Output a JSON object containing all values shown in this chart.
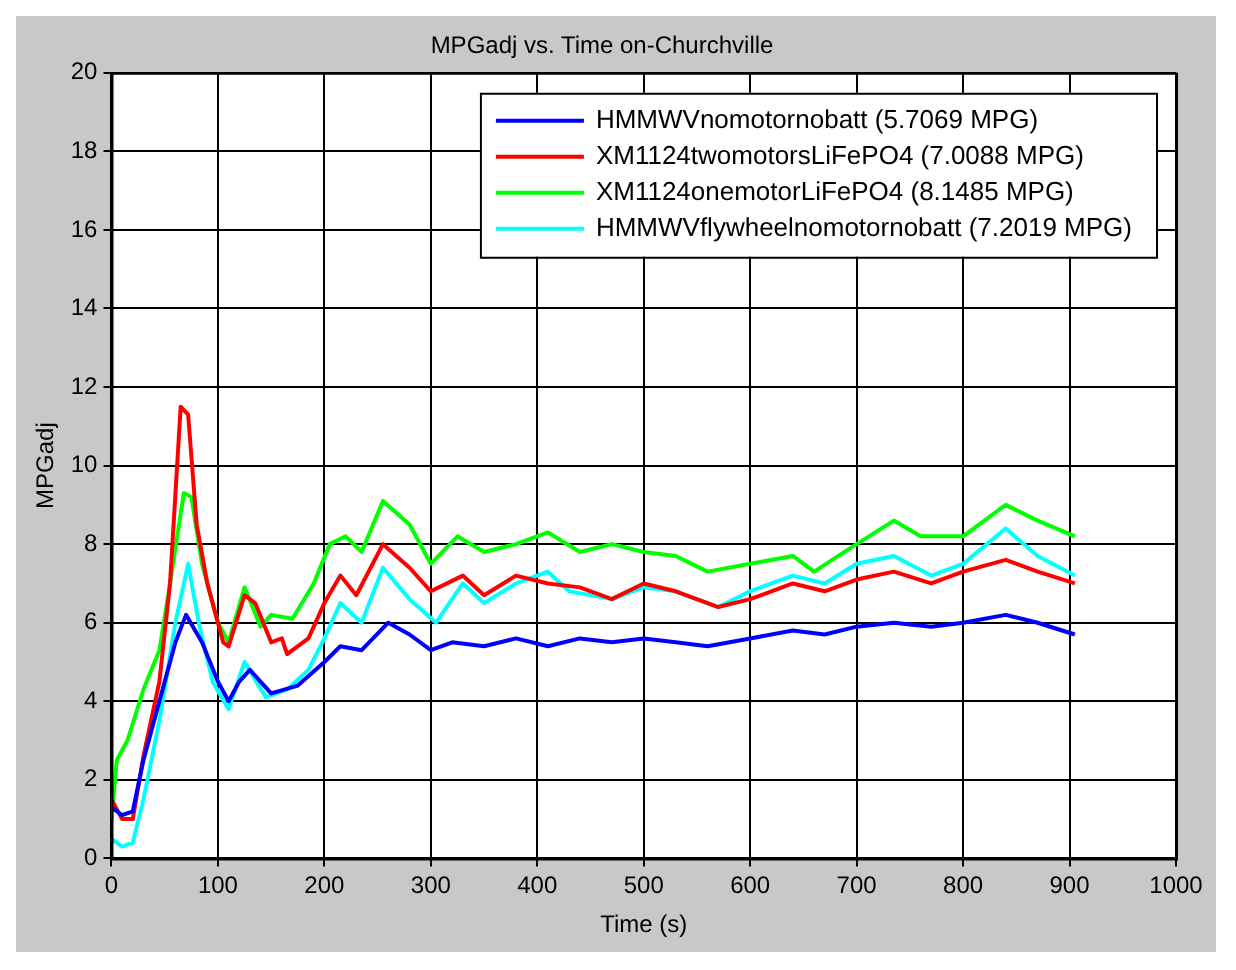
{
  "chart_data": {
    "type": "line",
    "title": "MPGadj vs. Time on-Churchville",
    "xlabel": "Time (s)",
    "ylabel": "MPGadj",
    "xlim": [
      0,
      1000
    ],
    "xticks": [
      0,
      100,
      200,
      300,
      400,
      500,
      600,
      700,
      800,
      900,
      1000
    ],
    "ylim": [
      0,
      20
    ],
    "yticks": [
      0,
      2,
      4,
      6,
      8,
      10,
      12,
      14,
      16,
      18,
      20
    ],
    "grid": true,
    "legend": "top right",
    "marker": "none",
    "line_style": "solid",
    "series": [
      {
        "name": "HMMWVnomotornobatt (5.7069 MPG)",
        "color": "#0000ff",
        "x": [
          0,
          10,
          20,
          30,
          45,
          60,
          70,
          85,
          100,
          110,
          120,
          130,
          150,
          175,
          200,
          215,
          235,
          260,
          280,
          300,
          320,
          350,
          380,
          410,
          440,
          470,
          500,
          530,
          560,
          600,
          640,
          670,
          700,
          735,
          770,
          800,
          840,
          870,
          905
        ],
        "values": [
          1.3,
          1.1,
          1.2,
          2.5,
          4,
          5.5,
          6.2,
          5.5,
          4.5,
          4.0,
          4.5,
          4.8,
          4.2,
          4.4,
          5.0,
          5.4,
          5.3,
          6.0,
          5.7,
          5.3,
          5.5,
          5.4,
          5.6,
          5.4,
          5.6,
          5.5,
          5.6,
          5.5,
          5.4,
          5.6,
          5.8,
          5.7,
          5.9,
          6.0,
          5.9,
          6.0,
          6.2,
          6.0,
          5.7
        ]
      },
      {
        "name": "XM1124twomotorsLiFePO4 (7.0088 MPG)",
        "color": "#ff0000",
        "x": [
          0,
          10,
          20,
          30,
          45,
          55,
          65,
          72,
          80,
          90,
          105,
          110,
          125,
          135,
          150,
          160,
          165,
          185,
          200,
          215,
          230,
          255,
          280,
          300,
          330,
          350,
          380,
          410,
          440,
          470,
          500,
          530,
          570,
          600,
          640,
          670,
          700,
          735,
          770,
          800,
          840,
          870,
          905
        ],
        "values": [
          1.5,
          1.0,
          1.0,
          2.6,
          4.5,
          7,
          11.5,
          11.3,
          8.5,
          7.0,
          5.5,
          5.4,
          6.7,
          6.5,
          5.5,
          5.6,
          5.2,
          5.6,
          6.5,
          7.2,
          6.7,
          8.0,
          7.4,
          6.8,
          7.2,
          6.7,
          7.2,
          7.0,
          6.9,
          6.6,
          7.0,
          6.8,
          6.4,
          6.6,
          7.0,
          6.8,
          7.1,
          7.3,
          7.0,
          7.3,
          7.6,
          7.3,
          7.0
        ]
      },
      {
        "name": "XM1124onemotorLiFePO4 (8.1485 MPG)",
        "color": "#00ff00",
        "x": [
          0,
          5,
          15,
          30,
          45,
          55,
          68,
          75,
          85,
          100,
          110,
          125,
          140,
          150,
          170,
          190,
          205,
          220,
          235,
          255,
          280,
          300,
          325,
          350,
          380,
          410,
          440,
          470,
          500,
          530,
          560,
          600,
          640,
          660,
          700,
          735,
          760,
          800,
          840,
          870,
          905
        ],
        "values": [
          1.0,
          2.5,
          3.0,
          4.3,
          5.3,
          7.0,
          9.3,
          9.2,
          7.5,
          6.0,
          5.5,
          6.9,
          5.9,
          6.2,
          6.1,
          7.0,
          8.0,
          8.2,
          7.8,
          9.1,
          8.5,
          7.5,
          8.2,
          7.8,
          8.0,
          8.3,
          7.8,
          8.0,
          7.8,
          7.7,
          7.3,
          7.5,
          7.7,
          7.3,
          8.0,
          8.6,
          8.2,
          8.2,
          9.0,
          8.6,
          8.2
        ]
      },
      {
        "name": "HMMWVflywheelnomotornobatt (7.2019 MPG)",
        "color": "#00ffff",
        "x": [
          0,
          10,
          20,
          30,
          45,
          60,
          72,
          82,
          95,
          110,
          125,
          145,
          165,
          185,
          200,
          215,
          235,
          255,
          280,
          305,
          330,
          350,
          380,
          410,
          430,
          470,
          500,
          530,
          570,
          600,
          640,
          670,
          700,
          735,
          770,
          800,
          840,
          870,
          905
        ],
        "values": [
          0.5,
          0.3,
          0.4,
          1.5,
          3.5,
          6,
          7.5,
          6.0,
          4.5,
          3.8,
          5.0,
          4.1,
          4.3,
          4.8,
          5.6,
          6.5,
          6.0,
          7.4,
          6.6,
          6.0,
          7.0,
          6.5,
          7.0,
          7.3,
          6.8,
          6.6,
          6.9,
          6.8,
          6.4,
          6.8,
          7.2,
          7.0,
          7.5,
          7.7,
          7.2,
          7.5,
          8.4,
          7.7,
          7.2
        ]
      }
    ]
  }
}
